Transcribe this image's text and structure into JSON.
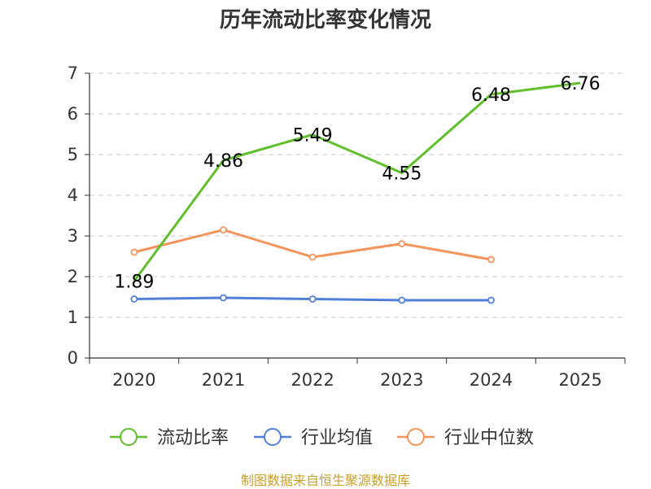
{
  "chart_data": {
    "type": "line",
    "title": "历年流动比率变化情况",
    "categories": [
      "2020",
      "2021",
      "2022",
      "2023",
      "2024",
      "2025"
    ],
    "ylim": [
      0,
      7
    ],
    "yticks": [
      "0",
      "1",
      "2",
      "3",
      "4",
      "5",
      "6",
      "7"
    ],
    "xlabel": "",
    "ylabel": "",
    "grid": true,
    "legend_position": "bottom",
    "series": [
      {
        "name": "流动比率",
        "color": "#5fbf2a",
        "values": [
          1.89,
          4.86,
          5.49,
          4.55,
          6.48,
          6.76
        ],
        "labels": [
          "1.89",
          "4.86",
          "5.49",
          "4.55",
          "6.48",
          "6.76"
        ]
      },
      {
        "name": "行业均值",
        "color": "#4f7fd8",
        "values": [
          1.45,
          1.48,
          1.45,
          1.42,
          1.42,
          null
        ],
        "labels": []
      },
      {
        "name": "行业中位数",
        "color": "#f4935a",
        "values": [
          2.6,
          3.15,
          2.48,
          2.81,
          2.42,
          null
        ],
        "labels": []
      }
    ]
  },
  "footer": {
    "source": "制图数据来自恒生聚源数据库",
    "color": "#c8a02d"
  }
}
